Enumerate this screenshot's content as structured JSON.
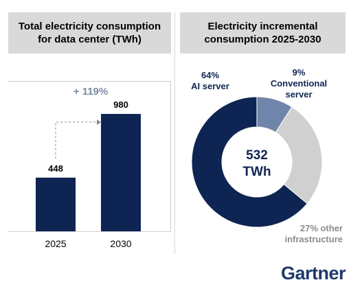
{
  "chart_data": [
    {
      "type": "bar",
      "title": "Total electricity consumption for data center (TWh)",
      "title_lines": [
        "Total electricity consumption",
        "for data center (TWh)"
      ],
      "categories": [
        "2025",
        "2030"
      ],
      "values": [
        448,
        980
      ],
      "value_labels": [
        "448",
        "980"
      ],
      "annotation": "+ 119%",
      "bar_color": "#0e2452",
      "annotation_color": "#7b8aa3",
      "ylim": [
        0,
        1100
      ]
    },
    {
      "type": "pie",
      "title": "Electricity incremental consumption 2025-2030",
      "title_lines": [
        "Electricity incremental",
        "consumption 2025-2030"
      ],
      "center_label": [
        "532",
        "TWh"
      ],
      "slices": [
        {
          "label_lines": [
            "9%",
            "Conventional",
            "server"
          ],
          "value": 9,
          "color": "#7085aa",
          "label_color": "#0e2452"
        },
        {
          "label_lines": [
            "27% other",
            "infrastructure"
          ],
          "value": 27,
          "color": "#d0d0d0",
          "label_color": "#8c8c8c"
        },
        {
          "label_lines": [
            "64%",
            "AI server"
          ],
          "value": 64,
          "color": "#0e2452",
          "label_color": "#0e2452"
        }
      ]
    }
  ],
  "brand": {
    "logo_text": "Gartner",
    "color": "#1f3a6b"
  }
}
